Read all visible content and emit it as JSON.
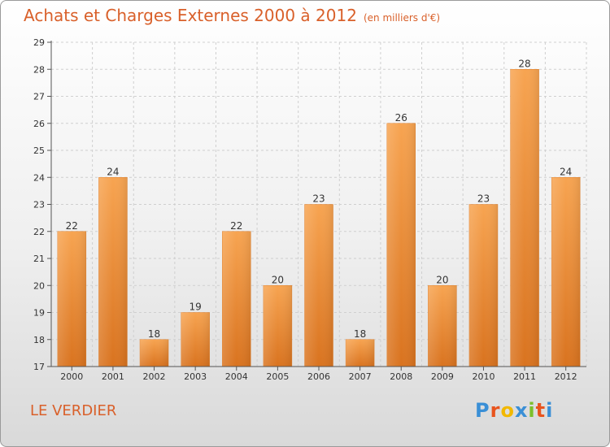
{
  "title": "Achats et Charges Externes 2000 à 2012",
  "subtitle": "(en milliers d'€)",
  "commune": "LE VERDIER",
  "logo": {
    "letters": [
      "P",
      "r",
      "o",
      "x",
      "i",
      "t",
      "i"
    ],
    "colors": [
      "#3a8fd6",
      "#e8541e",
      "#f2b800",
      "#3a8fd6",
      "#7cbf2b",
      "#e8541e",
      "#3a8fd6"
    ]
  },
  "chart_data": {
    "type": "bar",
    "categories": [
      "2000",
      "2001",
      "2002",
      "2003",
      "2004",
      "2005",
      "2006",
      "2007",
      "2008",
      "2009",
      "2010",
      "2011",
      "2012"
    ],
    "values": [
      22,
      24,
      18,
      19,
      22,
      20,
      23,
      18,
      26,
      20,
      23,
      28,
      24
    ],
    "ylim": [
      17,
      29
    ],
    "yticks": [
      17,
      18,
      19,
      20,
      21,
      22,
      23,
      24,
      25,
      26,
      27,
      28,
      29
    ],
    "grid": true,
    "bar_color": "#f0923c"
  }
}
